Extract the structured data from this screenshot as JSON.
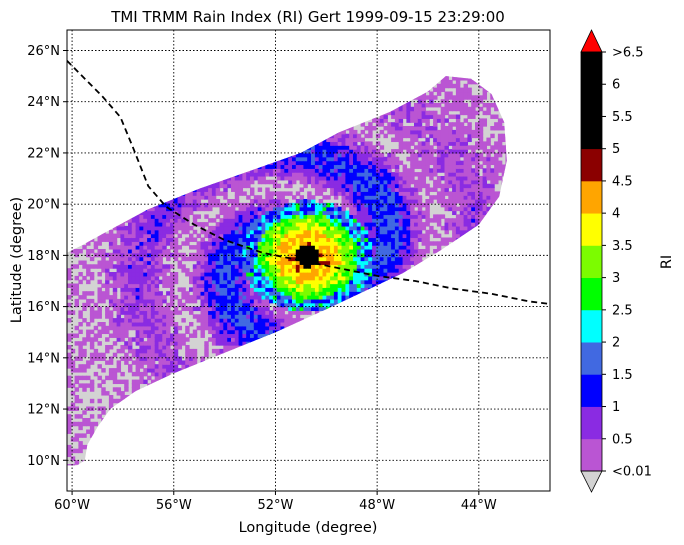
{
  "chart_data": {
    "type": "heatmap",
    "title": "TMI TRMM Rain Index (RI) Gert 1999-09-15 23:29:00",
    "xlabel": "Longitude (degree)",
    "ylabel": "Latitude (degree)",
    "xlim": [
      -60.2,
      -41.2
    ],
    "ylim": [
      8.8,
      26.8
    ],
    "grid": true,
    "x_ticks": [
      {
        "value": -60,
        "label": "60°W"
      },
      {
        "value": -56,
        "label": "56°W"
      },
      {
        "value": -52,
        "label": "52°W"
      },
      {
        "value": -48,
        "label": "48°W"
      },
      {
        "value": -44,
        "label": "44°W"
      }
    ],
    "y_ticks": [
      {
        "value": 10,
        "label": "10°N"
      },
      {
        "value": 12,
        "label": "12°N"
      },
      {
        "value": 14,
        "label": "14°N"
      },
      {
        "value": 16,
        "label": "16°N"
      },
      {
        "value": 18,
        "label": "18°N"
      },
      {
        "value": 20,
        "label": "20°N"
      },
      {
        "value": 22,
        "label": "22°N"
      },
      {
        "value": 24,
        "label": "24°N"
      },
      {
        "value": 26,
        "label": "26°N"
      }
    ],
    "track": {
      "x": [
        -60.2,
        -59.5,
        -58.8,
        -58.1,
        -57.6,
        -57.0,
        -56.3,
        -55.2,
        -54.0,
        -52.5,
        -51.0,
        -49.5,
        -48.0,
        -46.5,
        -45.0,
        -43.5,
        -42.0,
        -41.2
      ],
      "y": [
        25.6,
        24.9,
        24.2,
        23.4,
        22.2,
        20.7,
        19.9,
        19.2,
        18.6,
        18.1,
        17.8,
        17.5,
        17.2,
        17.0,
        16.7,
        16.5,
        16.2,
        16.1
      ]
    },
    "swath": {
      "lon": [
        -60.2,
        -59.6,
        -58.5,
        -57.0,
        -55.0,
        -53.0,
        -51.0,
        -49.5,
        -47.5,
        -46.0,
        -45.3,
        -44.3,
        -43.5,
        -43.0,
        -42.9,
        -43.2,
        -44.0,
        -45.5,
        -47.0,
        -48.5,
        -50.0,
        -52.0,
        -54.0,
        -56.0,
        -57.5,
        -58.5,
        -59.0,
        -59.4,
        -59.5,
        -59.8,
        -60.2
      ],
      "lat": [
        18.1,
        18.4,
        19.0,
        19.8,
        20.6,
        21.3,
        22.0,
        22.8,
        23.6,
        24.4,
        25.0,
        24.9,
        24.3,
        23.2,
        21.7,
        20.3,
        19.2,
        18.2,
        17.3,
        16.6,
        15.9,
        15.0,
        14.2,
        13.4,
        12.7,
        12.0,
        11.3,
        10.6,
        10.0,
        9.8,
        9.8
      ]
    },
    "storm_center": {
      "lon": -50.8,
      "lat": 17.9
    },
    "colorbar": {
      "label": "RI",
      "tick_labels": [
        "<0.01",
        "0.5",
        "1",
        "1.5",
        "2",
        "2.5",
        "3",
        "3.5",
        "4",
        "4.5",
        "5",
        "5.5",
        "6",
        ">6.5"
      ],
      "bins": [
        {
          "min": 0.01,
          "max": 0.5,
          "color": "#ba55d3"
        },
        {
          "min": 0.5,
          "max": 1.0,
          "color": "#8a2be2"
        },
        {
          "min": 1.0,
          "max": 1.5,
          "color": "#0000ff"
        },
        {
          "min": 1.5,
          "max": 2.0,
          "color": "#4169e1"
        },
        {
          "min": 2.0,
          "max": 2.5,
          "color": "#00ffff"
        },
        {
          "min": 2.5,
          "max": 3.0,
          "color": "#00ff00"
        },
        {
          "min": 3.0,
          "max": 3.5,
          "color": "#7cfc00"
        },
        {
          "min": 3.5,
          "max": 4.0,
          "color": "#ffff00"
        },
        {
          "min": 4.0,
          "max": 4.5,
          "color": "#ffa500"
        },
        {
          "min": 4.5,
          "max": 5.0,
          "color": "#8b0000"
        },
        {
          "min": 5.0,
          "max": 5.5,
          "color": "#000000"
        },
        {
          "min": 5.5,
          "max": 6.0,
          "color": "#000000"
        },
        {
          "min": 6.0,
          "max": 6.5,
          "color": "#000000"
        }
      ],
      "under_color": "#d3d3d3",
      "over_color": "#ff0000"
    }
  }
}
